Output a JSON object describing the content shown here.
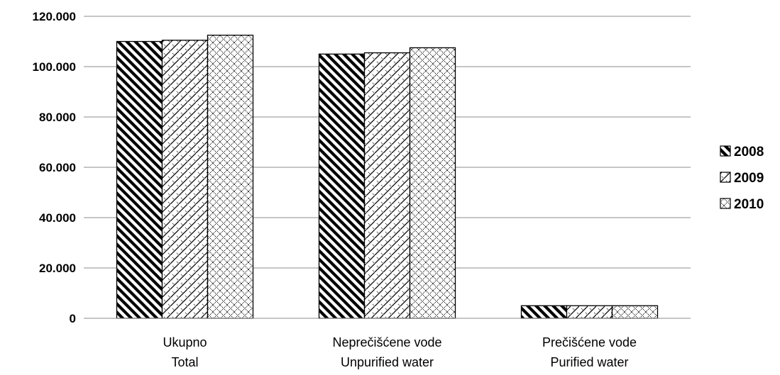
{
  "chart_data": {
    "type": "bar",
    "categories": [
      [
        "Ukupno",
        "Total"
      ],
      [
        "Neprečišćene vode",
        "Unpurified water"
      ],
      [
        "Prečišćene vode",
        "Purified water"
      ]
    ],
    "series": [
      {
        "name": "2008",
        "pattern": "diagonal-stripes",
        "values": [
          110000,
          105000,
          5000
        ]
      },
      {
        "name": "2009",
        "pattern": "diagonal-zigzag",
        "values": [
          110500,
          105500,
          5000
        ]
      },
      {
        "name": "2010",
        "pattern": "diamond-lattice",
        "values": [
          112500,
          107500,
          5000
        ]
      }
    ],
    "y_ticks": [
      "0",
      "20.000",
      "40.000",
      "60.000",
      "80.000",
      "100.000",
      "120.000"
    ],
    "y_tick_values": [
      0,
      20000,
      40000,
      60000,
      80000,
      100000,
      120000
    ],
    "ylim": [
      0,
      120000
    ],
    "grid": true,
    "legend_position": "right",
    "colors": {
      "ink": "#000000",
      "grid": "#8c8c8c",
      "background": "#ffffff"
    }
  }
}
